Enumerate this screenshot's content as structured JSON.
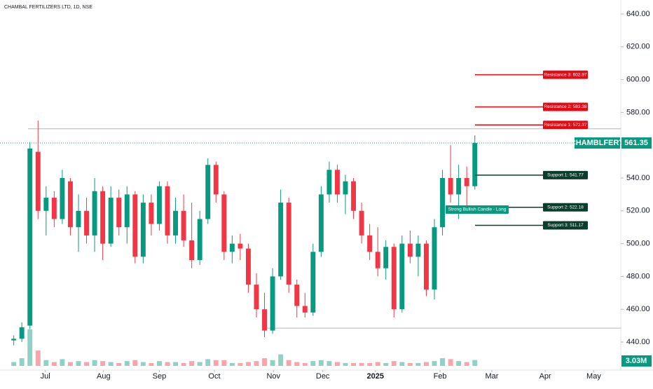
{
  "chart_data": {
    "type": "candlestick",
    "title": "CHAMBAL FERTILIZERS LTD, 1D, NSE",
    "symbol": "CHAMBLFERT",
    "last_price": {
      "value": 561.35,
      "label": "561.35"
    },
    "candles": {
      "open": [
        441,
        442,
        450,
        556,
        520,
        528,
        515,
        538,
        510,
        520,
        505,
        532,
        500,
        528,
        510,
        530,
        492,
        525,
        512,
        535,
        505,
        520,
        502,
        490,
        515,
        548,
        530,
        495,
        500,
        497,
        475,
        460,
        447,
        480,
        525,
        475,
        462,
        458,
        495,
        530,
        545,
        530,
        538,
        520,
        505,
        495,
        485,
        498,
        460,
        500,
        492,
        500,
        472,
        510,
        540,
        530,
        540,
        535
      ],
      "high": [
        444,
        452,
        562,
        575,
        535,
        532,
        545,
        540,
        530,
        528,
        540,
        535,
        535,
        533,
        535,
        532,
        530,
        530,
        538,
        538,
        528,
        530,
        525,
        520,
        552,
        550,
        532,
        505,
        506,
        500,
        482,
        470,
        485,
        533,
        528,
        478,
        470,
        500,
        535,
        550,
        548,
        542,
        540,
        525,
        512,
        510,
        502,
        500,
        505,
        508,
        505,
        502,
        515,
        545,
        560,
        548,
        547,
        566
      ],
      "low": [
        438,
        440,
        448,
        515,
        505,
        510,
        512,
        505,
        495,
        500,
        495,
        490,
        498,
        505,
        500,
        488,
        488,
        505,
        508,
        500,
        500,
        498,
        485,
        487,
        512,
        525,
        490,
        488,
        490,
        470,
        455,
        443,
        445,
        478,
        470,
        455,
        455,
        456,
        492,
        525,
        525,
        518,
        515,
        500,
        490,
        480,
        478,
        455,
        458,
        488,
        480,
        468,
        466,
        505,
        525,
        515,
        520,
        533
      ],
      "close": [
        442,
        449,
        558,
        520,
        528,
        515,
        540,
        510,
        520,
        505,
        532,
        500,
        528,
        510,
        530,
        492,
        525,
        512,
        535,
        505,
        520,
        502,
        490,
        515,
        548,
        530,
        495,
        500,
        497,
        475,
        460,
        447,
        480,
        525,
        475,
        462,
        458,
        495,
        530,
        545,
        530,
        538,
        520,
        505,
        495,
        485,
        498,
        460,
        500,
        492,
        500,
        472,
        510,
        540,
        530,
        540,
        535,
        561.35
      ],
      "up_color": "#089981",
      "down_color": "#f23645"
    },
    "volume": {
      "values": [
        2,
        4,
        19,
        8,
        3,
        2,
        3.5,
        2,
        2.5,
        2,
        3,
        2.5,
        2,
        1.5,
        2.5,
        3,
        2,
        1.5,
        2.5,
        2,
        2,
        1.5,
        2.5,
        2,
        3.5,
        3,
        3,
        1.5,
        1.5,
        2,
        2.5,
        4,
        3,
        6,
        3,
        2,
        1.5,
        2.5,
        3,
        2.5,
        2,
        1.5,
        1.5,
        1.5,
        1.5,
        2,
        1.5,
        2.5,
        2,
        1.5,
        1.5,
        2,
        2.5,
        4,
        3.5,
        2.5,
        2,
        3.03
      ],
      "last": {
        "value": 3.03,
        "label": "3.03M"
      }
    },
    "ylim": [
      440,
      640
    ],
    "yticks": [
      {
        "value": 440,
        "label": "440.00"
      },
      {
        "value": 460,
        "label": "460.00"
      },
      {
        "value": 480,
        "label": "480.00"
      },
      {
        "value": 500,
        "label": "500.00"
      },
      {
        "value": 520,
        "label": "520.00"
      },
      {
        "value": 540,
        "label": "540.00"
      },
      {
        "value": 560,
        "label": "560.00"
      },
      {
        "value": 580,
        "label": "580.00"
      },
      {
        "value": 600,
        "label": "600.00"
      },
      {
        "value": 620,
        "label": "620.00"
      },
      {
        "value": 640,
        "label": "640.00"
      }
    ],
    "xlim": [
      -1.7,
      74
    ],
    "xticks": [
      {
        "value": 3.9,
        "label": "Jul"
      },
      {
        "value": 11.1,
        "label": "Aug"
      },
      {
        "value": 18,
        "label": "Sep"
      },
      {
        "value": 24.8,
        "label": "Oct"
      },
      {
        "value": 32.1,
        "label": "Nov"
      },
      {
        "value": 38.2,
        "label": "Dec"
      },
      {
        "value": 44.7,
        "label": "2025"
      },
      {
        "value": 52.7,
        "label": "Feb"
      },
      {
        "value": 59.1,
        "label": "Mar"
      },
      {
        "value": 65.7,
        "label": "Apr"
      },
      {
        "value": 71.7,
        "label": "May"
      }
    ],
    "resistance": [
      {
        "value": 602.97,
        "label": "Resistance 3: 602.97"
      },
      {
        "value": 583.38,
        "label": "Resistance 2: 583.38"
      },
      {
        "value": 572.37,
        "label": "Resistance 1: 572.37"
      }
    ],
    "support": [
      {
        "value": 541.77,
        "label": "Support 1: 541.77"
      },
      {
        "value": 522.18,
        "label": "Support 2: 522.18"
      },
      {
        "value": 511.17,
        "label": "Support 3: 511.17"
      }
    ],
    "horizontal_lines": [
      570,
      448.5
    ],
    "annotation": "Strong Bullish Candle - Long"
  }
}
